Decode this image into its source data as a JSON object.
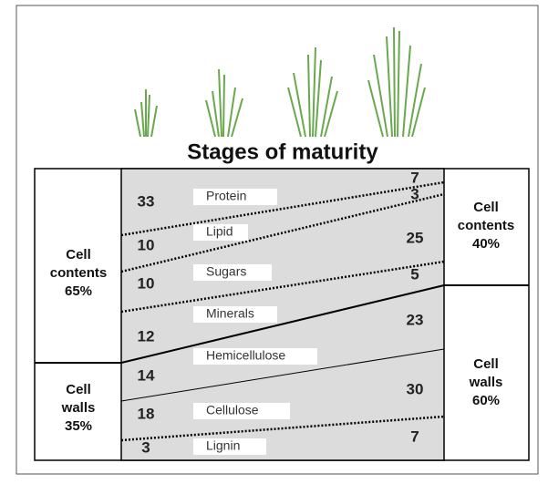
{
  "title": "Stages of maturity",
  "left": [
    {
      "lines": [
        "Cell",
        "contents",
        "65%"
      ]
    },
    {
      "lines": [
        "Cell",
        "walls",
        "35%"
      ]
    }
  ],
  "right": [
    {
      "lines": [
        "Cell",
        "contents",
        "40%"
      ]
    },
    {
      "lines": [
        "Cell",
        "walls",
        "60%"
      ]
    }
  ],
  "layers": [
    {
      "name": "Protein",
      "early": 33,
      "late": 7
    },
    {
      "name": "Lipid",
      "early": 10,
      "late": 3
    },
    {
      "name": "Sugars",
      "early": 10,
      "late": 25
    },
    {
      "name": "Minerals",
      "early": 12,
      "late": 5
    },
    {
      "name": "Hemicellulose",
      "early": 14,
      "late": 23
    },
    {
      "name": "Cellulose",
      "early": 18,
      "late": 30
    },
    {
      "name": "Lignin",
      "early": 3,
      "late": 7
    }
  ]
}
